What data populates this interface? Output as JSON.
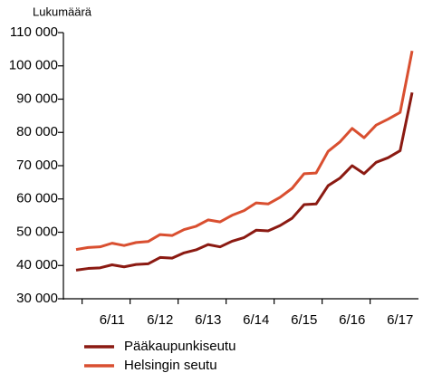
{
  "chart_data": {
    "type": "line",
    "y_axis_label": "Lukumäärä",
    "categories": [
      null,
      null,
      null,
      "6/11",
      null,
      null,
      null,
      "6/12",
      null,
      null,
      null,
      "6/13",
      null,
      null,
      null,
      "6/14",
      null,
      null,
      null,
      "6/15",
      null,
      null,
      null,
      "6/16",
      null,
      null,
      null,
      "6/17",
      null
    ],
    "series": [
      {
        "name": "Pääkaupunkiseutu",
        "color": "#8b1a12",
        "values": [
          38600,
          39100,
          39300,
          40200,
          39600,
          40300,
          40500,
          42400,
          42200,
          43800,
          44700,
          46300,
          45600,
          47300,
          48400,
          50600,
          50400,
          52000,
          54200,
          58300,
          58500,
          64000,
          66300,
          70000,
          67600,
          71000,
          72400,
          74500,
          92000
        ]
      },
      {
        "name": "Helsingin seutu",
        "color": "#d94f30",
        "values": [
          44800,
          45400,
          45600,
          46700,
          46000,
          46900,
          47200,
          49300,
          49000,
          50800,
          51800,
          53700,
          53100,
          55100,
          56500,
          58800,
          58500,
          60500,
          63200,
          67600,
          67800,
          74300,
          77200,
          81200,
          78400,
          82200,
          84000,
          86000,
          104500
        ]
      }
    ],
    "ylim": [
      30000,
      110000
    ],
    "yticks": [
      {
        "value": 30000,
        "label": "30 000"
      },
      {
        "value": 40000,
        "label": "40 000"
      },
      {
        "value": 50000,
        "label": "50 000"
      },
      {
        "value": 60000,
        "label": "60 000"
      },
      {
        "value": 70000,
        "label": "70 000"
      },
      {
        "value": 80000,
        "label": "80 000"
      },
      {
        "value": 90000,
        "label": "90 000"
      },
      {
        "value": 100000,
        "label": "100 000"
      },
      {
        "value": 110000,
        "label": "110 000"
      }
    ],
    "grid": false
  }
}
